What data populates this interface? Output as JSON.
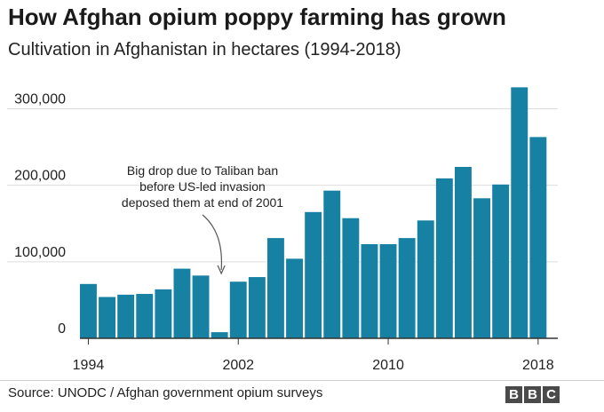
{
  "header": {
    "title": "How Afghan opium poppy farming has grown",
    "subtitle": "Cultivation in Afghanistan in hectares (1994-2018)"
  },
  "footer": {
    "source": "Source: UNODC / Afghan government opium surveys",
    "logo": [
      "B",
      "B",
      "C"
    ]
  },
  "colors": {
    "bar": "#1681a3",
    "grid": "#dddddd",
    "axis": "#333333",
    "text": "#222222"
  },
  "chart_data": {
    "type": "bar",
    "title": "How Afghan opium poppy farming has grown",
    "subtitle": "Cultivation in Afghanistan in hectares (1994-2018)",
    "xlabel": "",
    "ylabel": "",
    "categories": [
      1994,
      1995,
      1996,
      1997,
      1998,
      1999,
      2000,
      2001,
      2002,
      2003,
      2004,
      2005,
      2006,
      2007,
      2008,
      2009,
      2010,
      2011,
      2012,
      2013,
      2014,
      2015,
      2016,
      2017,
      2018
    ],
    "values": [
      71000,
      54000,
      57000,
      58000,
      64000,
      91000,
      82000,
      8000,
      74000,
      80000,
      131000,
      104000,
      165000,
      193000,
      157000,
      123000,
      123000,
      131000,
      154000,
      209000,
      224000,
      183000,
      201000,
      328000,
      263000
    ],
    "ylim": [
      0,
      340000
    ],
    "yticks": [
      0,
      100000,
      200000,
      300000
    ],
    "ytick_labels": [
      "0",
      "100,000",
      "200,000",
      "300,000"
    ],
    "xtick_labels": [
      {
        "year": 1994,
        "label": "1994"
      },
      {
        "year": 2002,
        "label": "2002"
      },
      {
        "year": 2010,
        "label": "2010"
      },
      {
        "year": 2018,
        "label": "2018"
      }
    ],
    "grid": true,
    "annotation": {
      "year": 2001,
      "lines": [
        "Big drop due to Taliban ban",
        "before US-led invasion",
        "deposed them at end of 2001"
      ]
    }
  }
}
